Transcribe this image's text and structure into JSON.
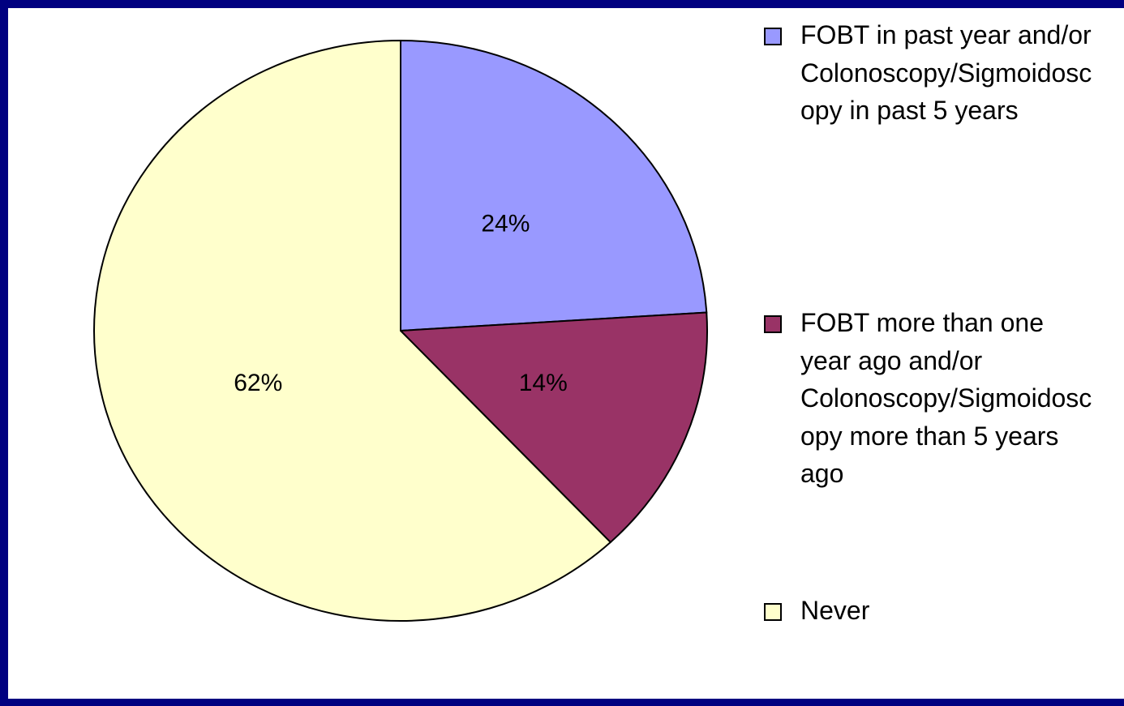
{
  "chart_data": {
    "type": "pie",
    "categories": [
      "FOBT in past year and/or Colonoscopy/Sigmoidoscopy in past 5 years",
      "FOBT more than one year ago and/or Colonoscopy/Sigmoidoscopy more than 5 years ago",
      "Never"
    ],
    "values": [
      24,
      14,
      62
    ],
    "value_labels": [
      "24%",
      "14%",
      "62%"
    ],
    "colors": [
      "#9999ff",
      "#993366",
      "#ffffcc"
    ],
    "legend": "right"
  }
}
